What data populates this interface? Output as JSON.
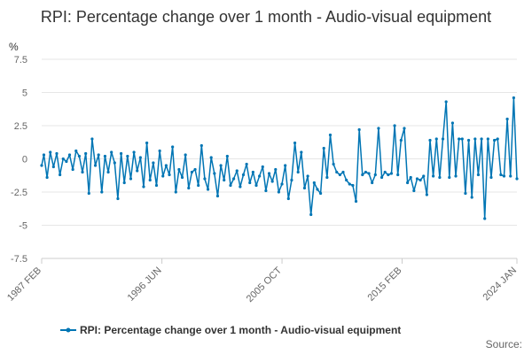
{
  "chart_data": {
    "type": "line",
    "title": "RPI: Percentage change over 1 month - Audio-visual equipment",
    "ylabel": "%",
    "ylim": [
      -7.5,
      7.5
    ],
    "yticks": [
      -7.5,
      -5,
      -2.5,
      0,
      2.5,
      5,
      7.5
    ],
    "ytick_labels": [
      "-7.5",
      "-5",
      "-2.5",
      "0",
      "2.5",
      "5",
      "7.5"
    ],
    "xlim": [
      1987.08,
      2024.0
    ],
    "xticks": [
      {
        "label": "1987 FEB",
        "value": 1987.08
      },
      {
        "label": "1996 JUN",
        "value": 1996.42
      },
      {
        "label": "2005 OCT",
        "value": 2005.75
      },
      {
        "label": "2015 FEB",
        "value": 2015.08
      },
      {
        "label": "2024 JAN",
        "value": 2024.0
      }
    ],
    "grid": true,
    "legend_position": "bottom",
    "series": [
      {
        "name": "RPI: Percentage change over 1 month - Audio-visual equipment",
        "color": "#0075b4",
        "x": [
          1987.08,
          1987.25,
          1987.5,
          1987.75,
          1988.0,
          1988.25,
          1988.5,
          1988.75,
          1989.0,
          1989.25,
          1989.5,
          1989.75,
          1990.0,
          1990.25,
          1990.5,
          1990.75,
          1991.0,
          1991.25,
          1991.5,
          1991.75,
          1992.0,
          1992.25,
          1992.5,
          1992.75,
          1993.0,
          1993.25,
          1993.5,
          1993.75,
          1994.0,
          1994.25,
          1994.5,
          1994.75,
          1995.0,
          1995.25,
          1995.5,
          1995.75,
          1996.0,
          1996.25,
          1996.5,
          1996.75,
          1997.0,
          1997.25,
          1997.5,
          1997.75,
          1998.0,
          1998.25,
          1998.5,
          1998.75,
          1999.0,
          1999.25,
          1999.5,
          1999.75,
          2000.0,
          2000.25,
          2000.5,
          2000.75,
          2001.0,
          2001.25,
          2001.5,
          2001.75,
          2002.0,
          2002.25,
          2002.5,
          2002.75,
          2003.0,
          2003.25,
          2003.5,
          2003.75,
          2004.0,
          2004.25,
          2004.5,
          2004.75,
          2005.0,
          2005.25,
          2005.5,
          2005.75,
          2006.0,
          2006.25,
          2006.5,
          2006.75,
          2007.0,
          2007.25,
          2007.5,
          2007.75,
          2008.0,
          2008.25,
          2008.5,
          2008.75,
          2009.0,
          2009.25,
          2009.5,
          2009.75,
          2010.0,
          2010.25,
          2010.5,
          2010.75,
          2011.0,
          2011.25,
          2011.5,
          2011.75,
          2012.0,
          2012.25,
          2012.5,
          2012.75,
          2013.0,
          2013.25,
          2013.5,
          2013.75,
          2014.0,
          2014.25,
          2014.5,
          2014.75,
          2015.0,
          2015.25,
          2015.5,
          2015.75,
          2016.0,
          2016.25,
          2016.5,
          2016.75,
          2017.0,
          2017.25,
          2017.5,
          2017.75,
          2018.0,
          2018.25,
          2018.5,
          2018.75,
          2019.0,
          2019.25,
          2019.5,
          2019.75,
          2020.0,
          2020.25,
          2020.5,
          2020.75,
          2021.0,
          2021.25,
          2021.5,
          2021.75,
          2022.0,
          2022.25,
          2022.5,
          2022.75,
          2023.0,
          2023.25,
          2023.5,
          2023.75,
          2024.0
        ],
        "values": [
          -0.5,
          0.3,
          -1.4,
          0.5,
          -0.6,
          0.4,
          -1.2,
          0.0,
          -0.2,
          0.3,
          -0.8,
          0.6,
          0.2,
          -1.0,
          0.4,
          -2.6,
          1.5,
          -0.5,
          0.3,
          -2.5,
          0.2,
          -1.0,
          0.5,
          -0.3,
          -3.0,
          0.4,
          -1.8,
          0.2,
          -1.5,
          0.5,
          -0.9,
          0.1,
          -2.1,
          1.2,
          -1.6,
          -0.3,
          -2.0,
          0.6,
          -1.3,
          -0.5,
          -1.2,
          0.9,
          -2.5,
          -0.8,
          -1.4,
          0.3,
          -2.2,
          -1.0,
          -0.8,
          -2.0,
          1.0,
          -1.5,
          -2.3,
          0.1,
          -1.1,
          -2.8,
          -0.5,
          -1.6,
          0.2,
          -2.0,
          -1.5,
          -0.9,
          -2.1,
          -1.2,
          -0.4,
          -1.8,
          -1.0,
          -2.0,
          -1.3,
          -0.6,
          -2.4,
          -1.1,
          -1.7,
          -0.8,
          -2.5,
          -1.9,
          -0.5,
          -3.0,
          -1.6,
          1.2,
          -1.0,
          0.5,
          -2.2,
          -1.3,
          -4.2,
          -1.8,
          -2.3,
          -2.6,
          0.8,
          -1.4,
          1.8,
          -0.4,
          -1.0,
          -1.2,
          -1.0,
          -1.6,
          -1.9,
          -2.0,
          -3.2,
          2.2,
          -1.2,
          -1.0,
          -1.1,
          -1.8,
          -1.2,
          2.3,
          -1.4,
          -1.0,
          -1.2,
          -1.1,
          2.5,
          -1.2,
          1.4,
          2.3,
          -1.8,
          -1.4,
          -2.4,
          -1.5,
          -1.6,
          -1.3,
          -2.7,
          1.4,
          -1.3,
          1.5,
          -1.4,
          1.5,
          4.3,
          -1.4,
          2.7,
          -1.3,
          1.5,
          1.5,
          -2.6,
          1.4,
          -2.9,
          1.5,
          -1.2,
          1.5,
          -4.5,
          1.5,
          -1.4,
          1.4,
          1.5,
          -1.2,
          -1.3,
          3.0,
          -1.3,
          4.6,
          -1.5
        ]
      }
    ],
    "legend_label": "RPI: Percentage change over 1 month - Audio-visual equipment",
    "source_label": "Source:"
  }
}
